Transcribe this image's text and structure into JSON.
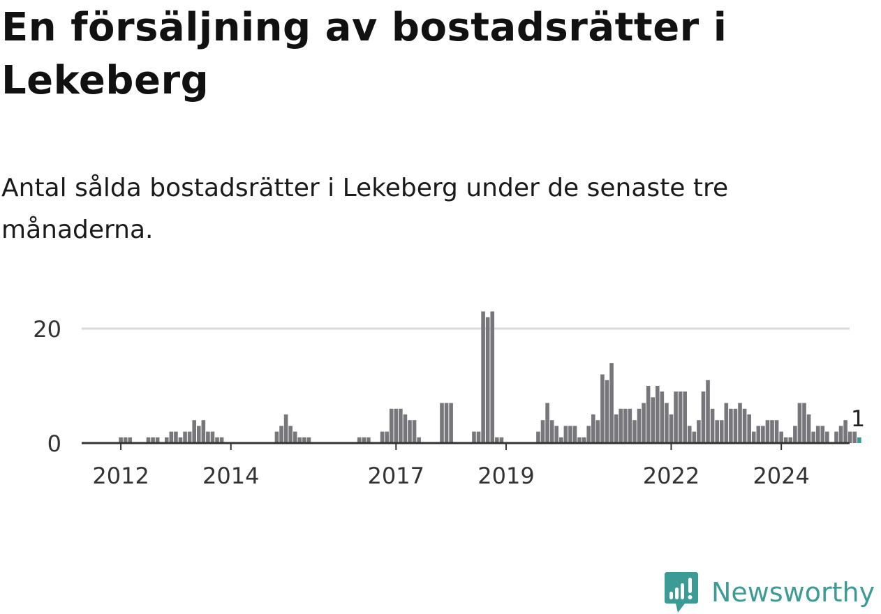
{
  "title": "En försäljning av bostadsrätter i Lekeberg",
  "subtitle": "Antal sålda bostadsrätter i Lekeberg under de senaste tre månaderna.",
  "brand": {
    "name": "Newsworthy",
    "icon": "newsworthy-logo-icon"
  },
  "colors": {
    "bar": "#77767b",
    "highlight": "#3d9b96",
    "grid": "#d9d9d9",
    "axis": "#333333",
    "text": "#333333"
  },
  "chart_data": {
    "type": "bar",
    "title": "",
    "xlabel": "",
    "ylabel": "",
    "ylim": [
      0,
      23
    ],
    "yticks": [
      0,
      20
    ],
    "xticks": [
      "2012",
      "2014",
      "2017",
      "2019",
      "2022",
      "2024"
    ],
    "grid": true,
    "x_start": "2011-09",
    "x_unit": "month",
    "highlight_label": "1",
    "series": [
      {
        "values": [
          0,
          0,
          0,
          0,
          1,
          1,
          1,
          0,
          0,
          0,
          1,
          1,
          1,
          0,
          1,
          2,
          2,
          1,
          2,
          2,
          4,
          3,
          4,
          2,
          2,
          1,
          1,
          0,
          0,
          0,
          0,
          0,
          0,
          0,
          0,
          0,
          0,
          0,
          2,
          3,
          5,
          3,
          2,
          1,
          1,
          1,
          0,
          0,
          0,
          0,
          0,
          0,
          0,
          0,
          0,
          0,
          1,
          1,
          1,
          0,
          0,
          2,
          2,
          6,
          6,
          6,
          5,
          4,
          4,
          1,
          0,
          0,
          0,
          0,
          7,
          7,
          7,
          0,
          0,
          0,
          0,
          2,
          2,
          23,
          22,
          23,
          1,
          1,
          0,
          0,
          0,
          0,
          0,
          0,
          0,
          2,
          4,
          7,
          4,
          3,
          1,
          3,
          3,
          3,
          1,
          1,
          3,
          5,
          4,
          12,
          11,
          14,
          5,
          6,
          6,
          6,
          4,
          6,
          7,
          10,
          8,
          10,
          9,
          7,
          5,
          9,
          9,
          9,
          3,
          2,
          4,
          9,
          11,
          6,
          4,
          4,
          7,
          6,
          6,
          7,
          6,
          5,
          2,
          3,
          3,
          4,
          4,
          4,
          2,
          1,
          1,
          3,
          7,
          7,
          5,
          2,
          3,
          3,
          2,
          0,
          2,
          3,
          4,
          2,
          2,
          1
        ]
      }
    ]
  }
}
